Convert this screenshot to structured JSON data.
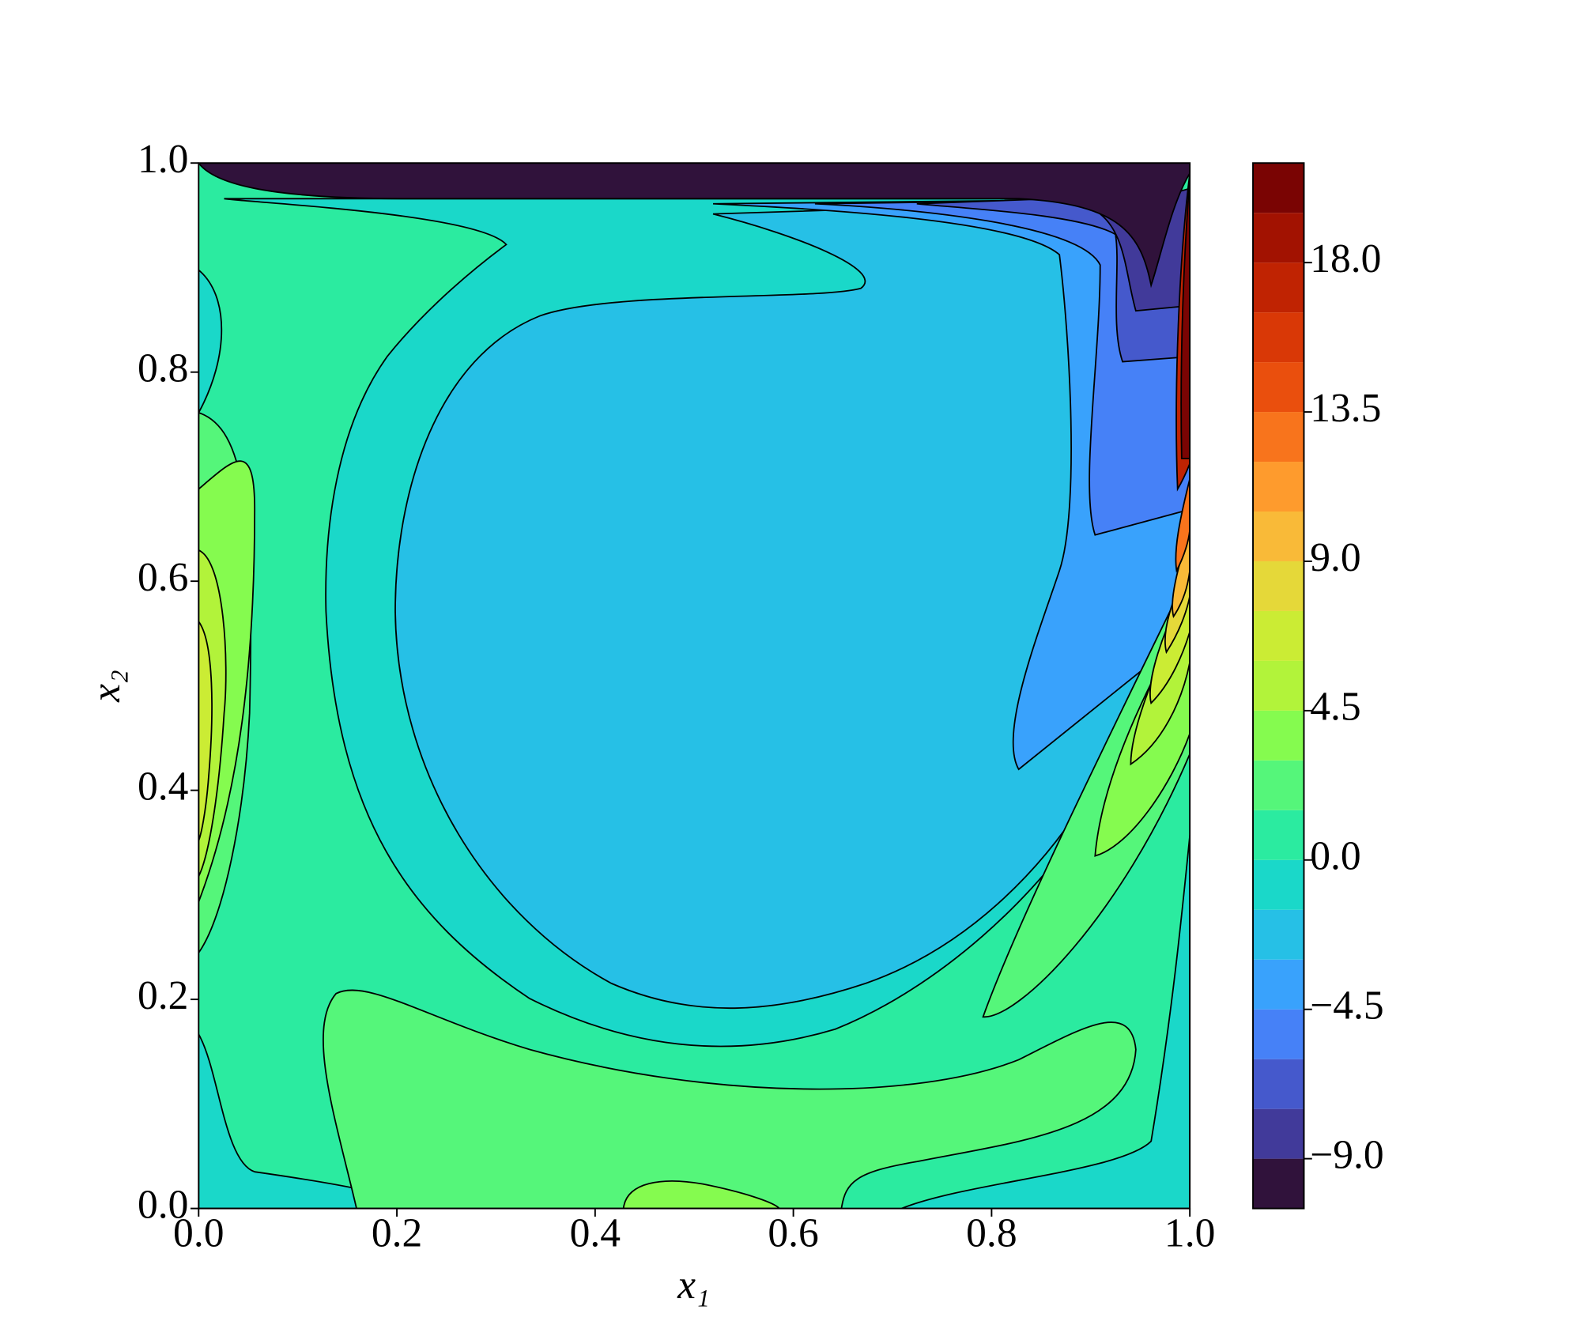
{
  "chart_data": {
    "type": "contour",
    "xlabel": "x₁",
    "ylabel": "x₂",
    "xlim": [
      0,
      1
    ],
    "ylim": [
      0,
      1
    ],
    "xticks": [
      {
        "value": 0,
        "label": "0.0"
      },
      0.2,
      0.4,
      0.6,
      0.8,
      {
        "value": 1,
        "label": "1.0"
      }
    ],
    "yticks": [
      {
        "value": 0,
        "label": "0.0"
      },
      0.2,
      0.4,
      0.6,
      0.8,
      {
        "value": 1,
        "label": "1.0"
      }
    ],
    "levels": [
      -10.5,
      -9,
      -7.5,
      -6,
      -4.5,
      -3,
      -1.5,
      0,
      1.5,
      3,
      4.5,
      6,
      7.5,
      9,
      10.5,
      12,
      13.5,
      15,
      16.5,
      18,
      19.5,
      21
    ],
    "colors": [
      "#30123b",
      "#413a9a",
      "#4559cc",
      "#4681f7",
      "#39a2fc",
      "#26c0e6",
      "#1ad8c9",
      "#2beba0",
      "#55f67a",
      "#85fb4f",
      "#b2f33a",
      "#cbec34",
      "#e5d839",
      "#f9ba38",
      "#fe9b2d",
      "#f8741c",
      "#ea4f0d",
      "#d93806",
      "#c02302",
      "#a21201",
      "#7a0403"
    ],
    "colorbar_ticks": [
      {
        "value": -9,
        "label": "−9.0"
      },
      {
        "value": -4.5,
        "label": "−4.5"
      },
      {
        "value": 0,
        "label": "0.0"
      },
      4.5,
      {
        "value": 9,
        "label": "9.0"
      },
      13.5,
      {
        "value": 18,
        "label": "18.0"
      }
    ]
  }
}
